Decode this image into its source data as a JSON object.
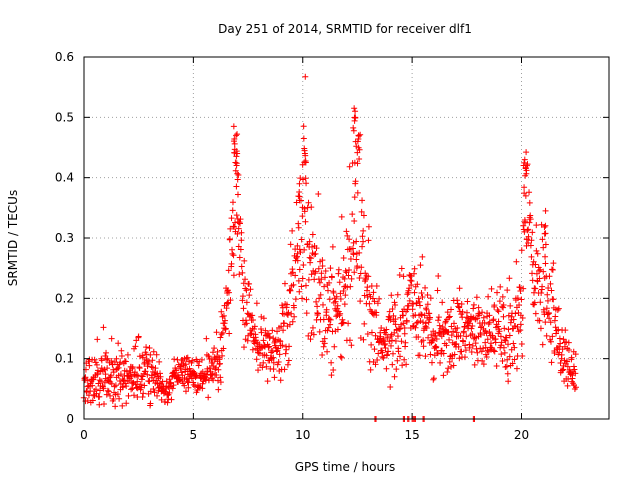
{
  "chart_data": {
    "type": "scatter",
    "title": "Day 251 of 2014, SRMTID for receiver dlf1",
    "xlabel": "GPS time / hours",
    "ylabel": "SRMTID / TECUs",
    "xlim": [
      0,
      24
    ],
    "ylim": [
      0,
      0.6
    ],
    "xticks": [
      0,
      5,
      10,
      15,
      20
    ],
    "xtick_labels": [
      "0",
      "5",
      "10",
      "15",
      "20"
    ],
    "yticks": [
      0,
      0.1,
      0.2,
      0.3,
      0.4,
      0.5,
      0.6
    ],
    "ytick_labels": [
      "0",
      "0.1",
      "0.2",
      "0.3",
      "0.4",
      "0.5",
      "0.6"
    ],
    "grid": true,
    "marker": "plus",
    "series": [
      {
        "name": "SRMTID",
        "color": "#ff0000",
        "envelope": [
          {
            "x": 0.0,
            "base": 0.06,
            "spread": 0.035
          },
          {
            "x": 1.0,
            "base": 0.065,
            "spread": 0.04
          },
          {
            "x": 2.0,
            "base": 0.075,
            "spread": 0.045
          },
          {
            "x": 3.0,
            "base": 0.08,
            "spread": 0.05
          },
          {
            "x": 3.8,
            "base": 0.04,
            "spread": 0.02
          },
          {
            "x": 4.2,
            "base": 0.075,
            "spread": 0.025
          },
          {
            "x": 5.5,
            "base": 0.07,
            "spread": 0.03
          },
          {
            "x": 6.2,
            "base": 0.1,
            "spread": 0.04
          },
          {
            "x": 6.6,
            "base": 0.22,
            "spread": 0.08
          },
          {
            "x": 6.9,
            "base": 0.38,
            "spread": 0.1
          },
          {
            "x": 7.3,
            "base": 0.2,
            "spread": 0.07
          },
          {
            "x": 8.0,
            "base": 0.12,
            "spread": 0.05
          },
          {
            "x": 9.0,
            "base": 0.11,
            "spread": 0.05
          },
          {
            "x": 9.7,
            "base": 0.24,
            "spread": 0.12
          },
          {
            "x": 10.1,
            "base": 0.32,
            "spread": 0.13
          },
          {
            "x": 11.0,
            "base": 0.16,
            "spread": 0.08
          },
          {
            "x": 11.8,
            "base": 0.18,
            "spread": 0.08
          },
          {
            "x": 12.4,
            "base": 0.32,
            "spread": 0.16
          },
          {
            "x": 13.0,
            "base": 0.2,
            "spread": 0.1
          },
          {
            "x": 13.6,
            "base": 0.12,
            "spread": 0.05
          },
          {
            "x": 14.5,
            "base": 0.14,
            "spread": 0.07
          },
          {
            "x": 15.0,
            "base": 0.2,
            "spread": 0.08
          },
          {
            "x": 16.0,
            "base": 0.13,
            "spread": 0.06
          },
          {
            "x": 17.5,
            "base": 0.14,
            "spread": 0.05
          },
          {
            "x": 19.0,
            "base": 0.15,
            "spread": 0.06
          },
          {
            "x": 20.0,
            "base": 0.16,
            "spread": 0.08
          },
          {
            "x": 20.2,
            "base": 0.36,
            "spread": 0.08
          },
          {
            "x": 20.6,
            "base": 0.22,
            "spread": 0.08
          },
          {
            "x": 21.2,
            "base": 0.22,
            "spread": 0.1
          },
          {
            "x": 21.8,
            "base": 0.1,
            "spread": 0.05
          },
          {
            "x": 22.5,
            "base": 0.08,
            "spread": 0.03
          }
        ],
        "peaks": [
          {
            "x": 6.85,
            "y": 0.485
          },
          {
            "x": 6.95,
            "y": 0.47
          },
          {
            "x": 7.0,
            "y": 0.44
          },
          {
            "x": 9.85,
            "y": 0.39
          },
          {
            "x": 10.05,
            "y": 0.465
          },
          {
            "x": 10.1,
            "y": 0.44
          },
          {
            "x": 12.35,
            "y": 0.515
          },
          {
            "x": 12.4,
            "y": 0.5
          },
          {
            "x": 12.55,
            "y": 0.47
          },
          {
            "x": 20.15,
            "y": 0.43
          },
          {
            "x": 20.25,
            "y": 0.42
          },
          {
            "x": 21.1,
            "y": 0.345
          }
        ],
        "zero_values_x": [
          13.3,
          14.6,
          14.8,
          15.0,
          15.1,
          15.5,
          17.8
        ]
      }
    ]
  }
}
